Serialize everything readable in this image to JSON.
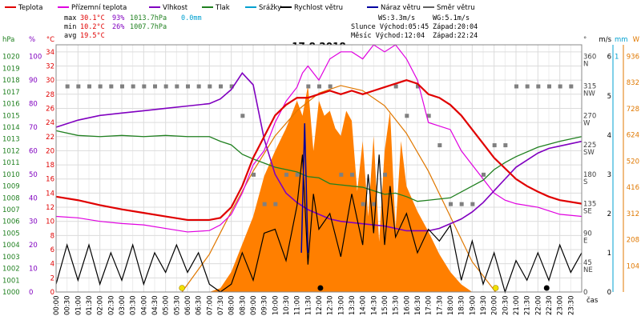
{
  "legend": [
    {
      "label": "Teplota",
      "color": "#e00000"
    },
    {
      "label": "Přízemní teplota",
      "color": "#e000e0"
    },
    {
      "label": "Vlhkost",
      "color": "#8000c0"
    },
    {
      "label": "Tlak",
      "color": "#208020"
    },
    {
      "label": "Srážky",
      "color": "#00a0d0"
    },
    {
      "label": "Rychlost větru",
      "color": "#000000"
    },
    {
      "label": "Náraz větru",
      "color": "#0000a0"
    },
    {
      "label": "Směr větru",
      "color": "#606060"
    }
  ],
  "stats": {
    "max": {
      "label": "max",
      "temp": "30.1°C",
      "hum": "93%",
      "press": "1013.7hPa",
      "rain": "0.0mm"
    },
    "min": {
      "label": "min",
      "temp": "10.2°C",
      "hum": "26%",
      "press": "1007.7hPa"
    },
    "avg": {
      "label": "avg",
      "temp": "19.5°C"
    }
  },
  "info": {
    "ws": "WS:3.3m/s",
    "wg": "WG:5.1m/s",
    "sun_rise": "Slunce Východ:05:45",
    "sun_set": "Západ:20:04",
    "moon_rise": "Měsíc  Východ:12:04",
    "moon_set": "Západ:22:24"
  },
  "colors": {
    "temp": "#e00000",
    "ground": "#e000e0",
    "hum": "#8000c0",
    "press": "#208020",
    "rain": "#00a0d0",
    "wind": "#000000",
    "gust": "#0000a0",
    "dir": "#808080",
    "solar": "#ff7f00",
    "sun": "#e07800"
  },
  "chart_data": {
    "type": "line",
    "title": "17.8.2018",
    "xlabel": "čas",
    "x_ticks": [
      "00:00",
      "00:30",
      "01:00",
      "01:30",
      "02:00",
      "02:30",
      "03:00",
      "03:30",
      "04:00",
      "04:30",
      "05:00",
      "05:30",
      "06:00",
      "06:30",
      "07:00",
      "07:30",
      "08:00",
      "08:30",
      "09:00",
      "09:30",
      "10:00",
      "10:30",
      "11:00",
      "11:30",
      "12:00",
      "12:30",
      "13:00",
      "13:30",
      "14:00",
      "14:30",
      "15:00",
      "15:30",
      "16:00",
      "16:30",
      "17:00",
      "17:30",
      "18:00",
      "18:30",
      "19:00",
      "19:30",
      "20:00",
      "20:30",
      "21:00",
      "21:30",
      "22:00",
      "22:30",
      "23:00",
      "23:30"
    ],
    "axes": {
      "hpa": {
        "label": "hPa",
        "ticks": [
          "1020",
          "1019",
          "1018",
          "1017",
          "1016",
          "1015",
          "1014",
          "1013",
          "1012",
          "1011",
          "1010",
          "1009",
          "1008",
          "1007",
          "1006",
          "1005",
          "1004",
          "1003",
          "1002",
          "1001",
          "1000"
        ],
        "range": [
          1000,
          1021
        ]
      },
      "pct": {
        "label": "%",
        "ticks": [
          "100",
          "90",
          "80",
          "70",
          "60",
          "50",
          "40",
          "30",
          "20",
          "10",
          "0"
        ],
        "range": [
          0,
          105
        ]
      },
      "temp": {
        "label": "°C",
        "ticks": [
          "34",
          "32",
          "30",
          "28",
          "26",
          "24",
          "22",
          "20",
          "18",
          "16",
          "14",
          "12",
          "10",
          "8",
          "6",
          "4",
          "2",
          "0"
        ],
        "range": [
          0,
          35
        ]
      },
      "dir": {
        "label": "°",
        "ticks": [
          {
            "v": "360",
            "s": "N"
          },
          {
            "v": "315",
            "s": "NW"
          },
          {
            "v": "270",
            "s": "W"
          },
          {
            "v": "225",
            "s": "SW"
          },
          {
            "v": "180",
            "s": "S"
          },
          {
            "v": "135",
            "s": "SE"
          },
          {
            "v": "90",
            "s": "E"
          },
          {
            "v": "45",
            "s": "NE"
          },
          {
            "v": "0",
            "s": ""
          }
        ],
        "range": [
          0,
          378
        ]
      },
      "ms": {
        "label": "m/s",
        "ticks": [
          "6",
          "5",
          "4",
          "3",
          "2",
          "1",
          "0"
        ],
        "range": [
          0,
          6.3
        ]
      },
      "mm": {
        "label": "mm",
        "ticks": [
          "1"
        ],
        "range": [
          0,
          1.05
        ]
      },
      "w": {
        "label": "W",
        "ticks": [
          "936",
          "832",
          "728",
          "624",
          "520",
          "416",
          "312",
          "208",
          "104"
        ],
        "range": [
          0,
          982
        ]
      }
    },
    "series": [
      {
        "name": "Teplota",
        "unit": "°C",
        "x": [
          0,
          1,
          2,
          3,
          4,
          5,
          6,
          7,
          7.5,
          8,
          8.5,
          9,
          9.5,
          10,
          10.5,
          11,
          11.5,
          12,
          12.5,
          13,
          13.5,
          14,
          14.5,
          15,
          15.5,
          16,
          16.5,
          17,
          17.5,
          18,
          18.5,
          19,
          19.5,
          20,
          20.5,
          21,
          21.5,
          22,
          22.5,
          23,
          24
        ],
        "y": [
          13.5,
          13,
          12.3,
          11.7,
          11.2,
          10.7,
          10.2,
          10.2,
          10.5,
          12,
          15,
          19,
          22,
          25,
          26.5,
          27.5,
          27.5,
          28,
          28.5,
          28,
          28.5,
          28,
          28.5,
          29,
          29.5,
          30,
          29.5,
          28,
          27.5,
          26.5,
          25,
          23,
          21,
          19,
          17.5,
          16,
          15,
          14.2,
          13.5,
          13,
          12.5
        ]
      },
      {
        "name": "Přízemní teplota",
        "unit": "°C",
        "x": [
          0,
          1,
          2,
          3,
          4,
          5,
          6,
          7,
          7.5,
          8,
          8.5,
          9,
          9.5,
          10,
          10.5,
          11,
          11.25,
          11.5,
          12,
          12.5,
          13,
          13.5,
          14,
          14.5,
          15,
          15.5,
          16,
          16.5,
          17,
          17.5,
          18,
          18.5,
          19,
          19.5,
          20,
          20.5,
          21,
          22,
          23,
          24
        ],
        "y": [
          10.7,
          10.5,
          10,
          9.7,
          9.5,
          9,
          8.5,
          8.7,
          9.5,
          11,
          14,
          18,
          20,
          24,
          27,
          29,
          31,
          32,
          30,
          33,
          34,
          34,
          33,
          35,
          34,
          35,
          33,
          30,
          24,
          23.5,
          23,
          20,
          18,
          16,
          14,
          13,
          12.5,
          12,
          11,
          10.7
        ]
      },
      {
        "name": "Vlhkost",
        "unit": "%",
        "x": [
          0,
          1,
          2,
          3,
          4,
          5,
          6,
          7,
          7.5,
          8,
          8.5,
          9,
          9.5,
          10,
          10.5,
          11,
          11.5,
          12,
          12.5,
          13,
          14,
          15,
          16,
          17,
          17.5,
          18,
          18.5,
          19,
          19.5,
          20,
          20.5,
          21,
          21.5,
          22,
          22.5,
          23,
          24
        ],
        "y": [
          70,
          73,
          75,
          76,
          77,
          78,
          79,
          80,
          82,
          86,
          93,
          88,
          65,
          50,
          42,
          38,
          35,
          33,
          31,
          30,
          29,
          28,
          26,
          26,
          27,
          29,
          31,
          34,
          38,
          43,
          48,
          53,
          56,
          59,
          61,
          62,
          64
        ]
      },
      {
        "name": "Tlak",
        "unit": "hPa",
        "x": [
          0,
          1,
          2,
          3,
          4,
          5,
          6,
          7,
          7.5,
          8,
          8.5,
          9,
          10,
          11,
          11.5,
          12,
          12.5,
          13,
          14,
          15,
          15.5,
          16,
          16.5,
          17,
          18,
          19,
          19.5,
          20,
          20.5,
          21,
          22,
          23,
          24
        ],
        "y": [
          1013.7,
          1013.3,
          1013.2,
          1013.3,
          1013.2,
          1013.3,
          1013.2,
          1013.2,
          1012.8,
          1012.5,
          1011.7,
          1011.3,
          1010.6,
          1010.2,
          1009.8,
          1009.7,
          1009.2,
          1009.1,
          1008.9,
          1008.3,
          1008.4,
          1008.1,
          1007.7,
          1007.8,
          1008.0,
          1009.0,
          1009.5,
          1010.4,
          1011.0,
          1011.5,
          1012.3,
          1012.8,
          1013.2
        ]
      },
      {
        "name": "Rychlost větru",
        "unit": "m/s",
        "x": [
          0,
          0.5,
          1,
          1.5,
          2,
          2.5,
          3,
          3.5,
          4,
          4.5,
          5,
          5.5,
          6,
          6.5,
          7,
          7.5,
          8,
          8.5,
          9,
          9.5,
          10,
          10.5,
          11,
          11.25,
          11.5,
          11.75,
          12,
          12.5,
          13,
          13.5,
          14,
          14.25,
          14.5,
          14.75,
          15,
          15.25,
          15.5,
          16,
          16.5,
          17,
          17.5,
          18,
          18.5,
          19,
          19.5,
          20,
          20.5,
          21,
          21.5,
          22,
          22.5,
          23,
          23.5,
          24
        ],
        "y": [
          0.2,
          1.2,
          0.3,
          1.2,
          0.2,
          1.0,
          0.3,
          1.2,
          0.2,
          1.0,
          0.5,
          1.2,
          0.5,
          1.0,
          0.2,
          0,
          0.2,
          1.0,
          0.3,
          1.5,
          1.6,
          0.8,
          2.2,
          3.5,
          0.7,
          2.5,
          1.6,
          2.0,
          0.9,
          2.5,
          1.2,
          3.0,
          1.5,
          3.5,
          1.2,
          2.7,
          1.4,
          2.0,
          1.0,
          1.6,
          1.3,
          1.7,
          0.3,
          1.3,
          0.2,
          1.0,
          0,
          0.8,
          0.3,
          1.0,
          0.3,
          1.2,
          0.5,
          1.0
        ]
      },
      {
        "name": "Náraz větru",
        "unit": "m/s",
        "x": [
          11.2,
          11.35,
          11.5
        ],
        "y": [
          1.0,
          4.3,
          1.0
        ]
      },
      {
        "name": "Srážky",
        "unit": "mm",
        "x": [
          0,
          24
        ],
        "y": [
          0,
          0
        ]
      },
      {
        "name": "Směr větru",
        "unit": "°",
        "x": [
          0.5,
          1,
          1.5,
          2,
          2.5,
          3,
          3.5,
          4,
          4.5,
          5,
          5.5,
          6,
          6.5,
          7,
          7.5,
          8,
          8.5,
          9,
          9.5,
          10,
          10.5,
          11,
          11.5,
          12,
          12.5,
          13,
          13.5,
          14,
          14.5,
          15,
          15.5,
          16,
          16.5,
          17,
          17.5,
          18,
          18.5,
          19,
          19.5,
          20,
          20.5,
          21,
          21.5,
          22,
          22.5,
          23,
          23.5
        ],
        "y": [
          315,
          315,
          315,
          315,
          315,
          315,
          315,
          315,
          315,
          315,
          315,
          315,
          315,
          315,
          315,
          315,
          270,
          180,
          135,
          135,
          180,
          180,
          315,
          315,
          315,
          180,
          180,
          135,
          135,
          180,
          315,
          270,
          315,
          270,
          225,
          135,
          135,
          135,
          180,
          225,
          225,
          315,
          315,
          315,
          315,
          315,
          315
        ]
      },
      {
        "name": "Solar",
        "unit": "W",
        "x": [
          7.0,
          7.5,
          8.0,
          8.5,
          9.0,
          9.5,
          10.0,
          10.5,
          11.0,
          11.25,
          11.5,
          11.75,
          12.0,
          12.25,
          12.5,
          12.75,
          13.0,
          13.25,
          13.5,
          13.75,
          14.0,
          14.25,
          14.5,
          14.75,
          15.0,
          15.25,
          15.5,
          15.75,
          16.0,
          16.5,
          17.0,
          17.5,
          18.0,
          18.5,
          19.0
        ],
        "y": [
          0,
          15,
          80,
          190,
          300,
          460,
          560,
          650,
          760,
          700,
          820,
          560,
          760,
          700,
          720,
          650,
          620,
          720,
          680,
          400,
          600,
          300,
          620,
          200,
          560,
          720,
          250,
          600,
          420,
          320,
          240,
          150,
          80,
          30,
          0
        ]
      }
    ],
    "theoretical_solar": {
      "x": [
        5.75,
        7,
        8,
        9,
        10,
        11,
        12,
        13,
        14,
        15,
        16,
        17,
        18,
        19,
        20.07
      ],
      "y": [
        0,
        150,
        320,
        480,
        620,
        720,
        790,
        820,
        800,
        740,
        630,
        480,
        300,
        120,
        0
      ]
    },
    "sun_events": [
      5.75,
      20.07
    ],
    "moon_events": [
      12.07,
      22.4
    ]
  }
}
